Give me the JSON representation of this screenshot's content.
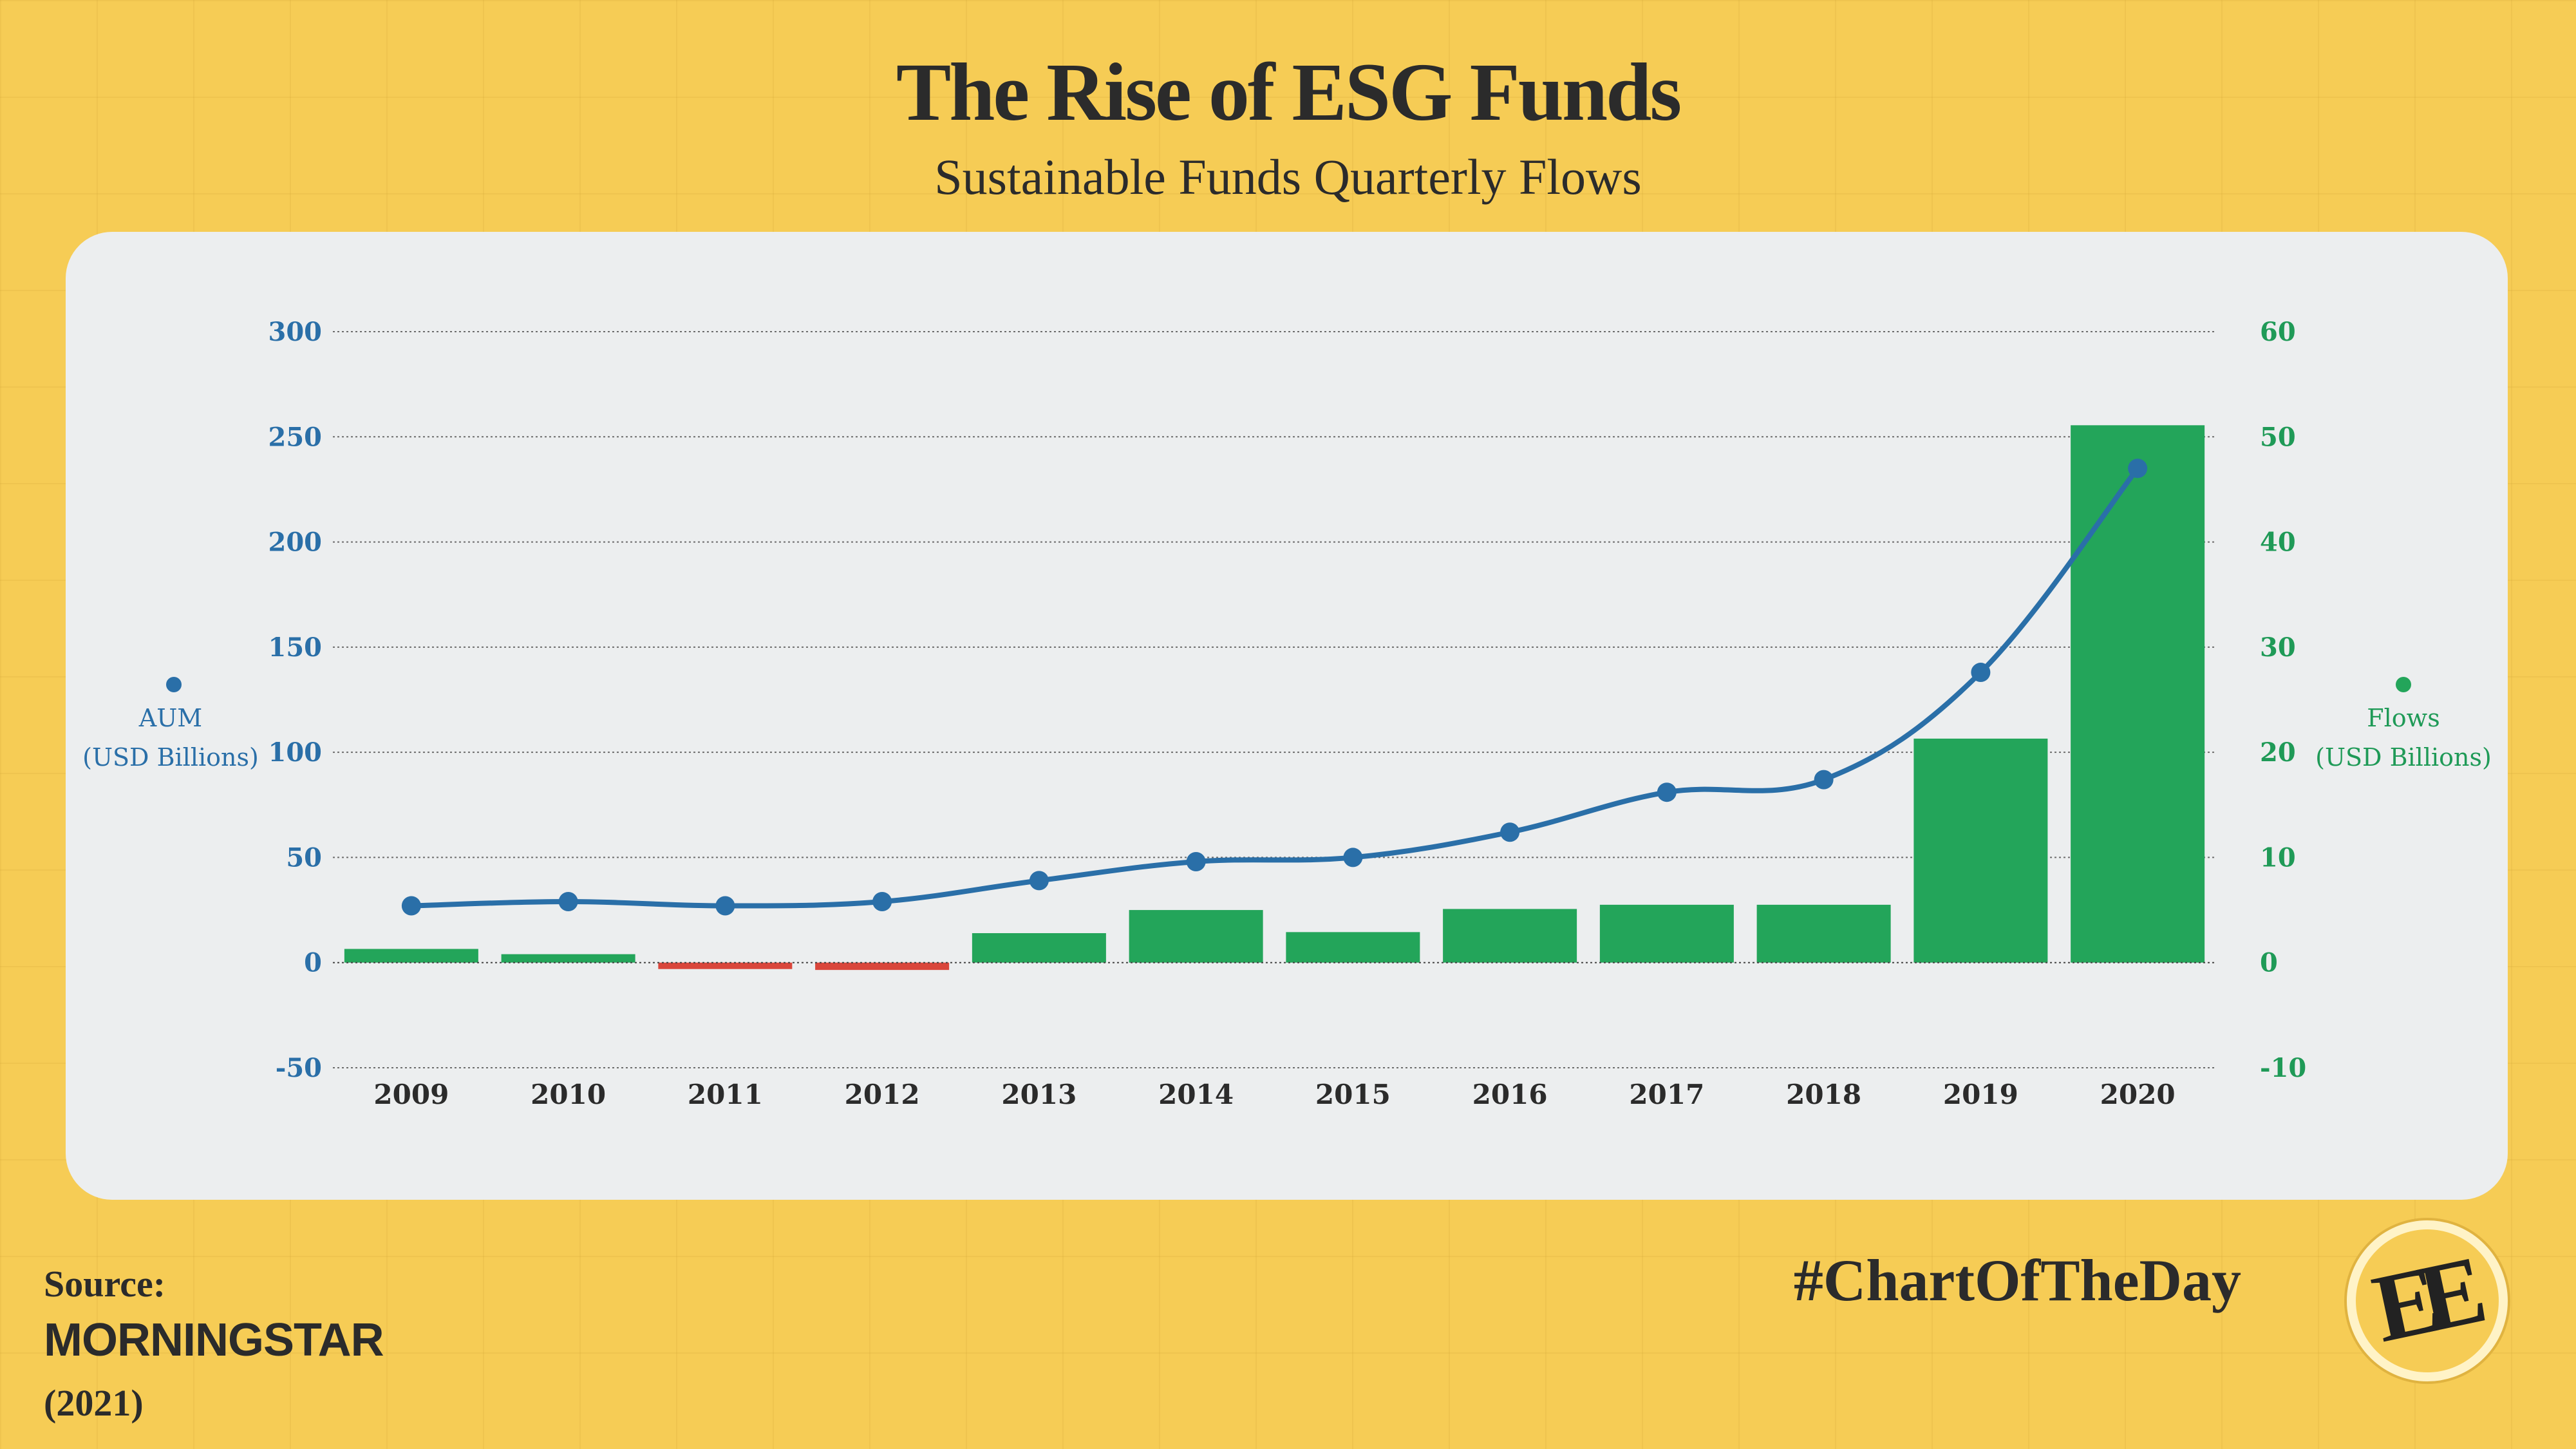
{
  "title": "The Rise of ESG Funds",
  "subtitle": "Sustainable Funds Quarterly Flows",
  "footer": {
    "source_label": "Source:",
    "source_name": "MORNINGSTAR",
    "source_year": "(2021)",
    "hashtag": "#ChartOfTheDay",
    "logo_text": "EE"
  },
  "colors": {
    "aum_line": "#2a6fa8",
    "flows_positive": "#23a55a",
    "flows_negative": "#d9463b"
  },
  "chart_data": {
    "type": "bar",
    "categories": [
      "2009",
      "2010",
      "2011",
      "2012",
      "2013",
      "2014",
      "2015",
      "2016",
      "2017",
      "2018",
      "2019",
      "2020"
    ],
    "series": [
      {
        "name": "Flows",
        "type": "bar",
        "axis": "right",
        "values": [
          1.3,
          0.8,
          -0.6,
          -0.7,
          2.8,
          5.0,
          2.9,
          5.1,
          5.5,
          5.5,
          21.3,
          51.1
        ]
      },
      {
        "name": "AUM",
        "type": "line",
        "axis": "left",
        "values": [
          27,
          29,
          27,
          29,
          39,
          48,
          50,
          62,
          81,
          87,
          138,
          235
        ]
      }
    ],
    "left_axis": {
      "label_line1": "AUM",
      "label_line2": "(USD Billions)",
      "min": -50,
      "max": 300,
      "ticks": [
        "-50",
        "0",
        "50",
        "100",
        "150",
        "200",
        "250",
        "300"
      ]
    },
    "right_axis": {
      "label_line1": "Flows",
      "label_line2": "(USD Billions)",
      "min": -10,
      "max": 60,
      "ticks": [
        "-10",
        "0",
        "10",
        "20",
        "30",
        "40",
        "50",
        "60"
      ]
    },
    "grid": true,
    "legend": "none"
  }
}
